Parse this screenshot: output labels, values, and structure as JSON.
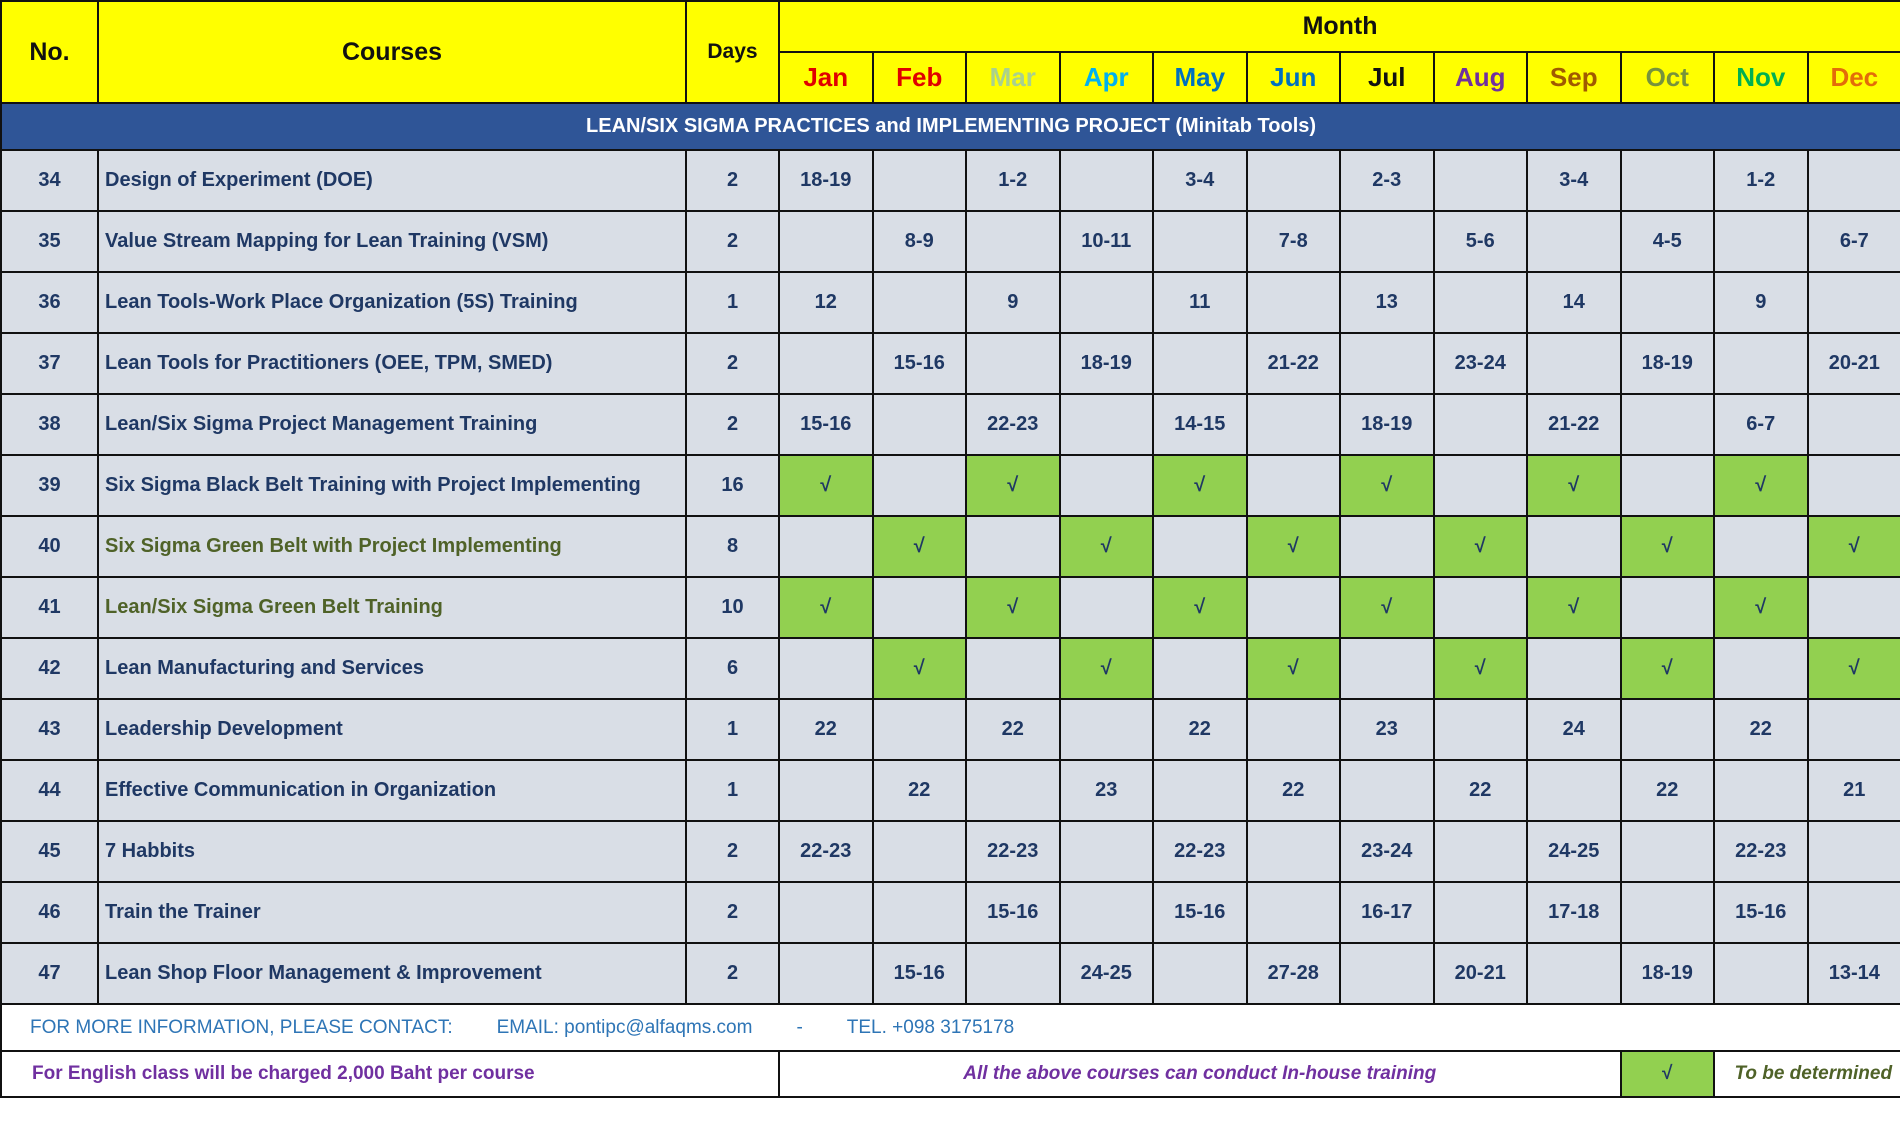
{
  "header": {
    "no": "No.",
    "courses": "Courses",
    "days": "Days",
    "month": "Month",
    "months": [
      {
        "name": "Jan",
        "color": "#e00000"
      },
      {
        "name": "Feb",
        "color": "#e00000"
      },
      {
        "name": "Mar",
        "color": "#a9d18e"
      },
      {
        "name": "Apr",
        "color": "#00b0f0"
      },
      {
        "name": "May",
        "color": "#0070c0"
      },
      {
        "name": "Jun",
        "color": "#0070c0"
      },
      {
        "name": "Jul",
        "color": "#111111"
      },
      {
        "name": "Aug",
        "color": "#7030a0"
      },
      {
        "name": "Sep",
        "color": "#a05a00"
      },
      {
        "name": "Oct",
        "color": "#77933c"
      },
      {
        "name": "Nov",
        "color": "#00b050"
      },
      {
        "name": "Dec",
        "color": "#e36c09"
      }
    ]
  },
  "section": "LEAN/SIX SIGMA PRACTICES and IMPLEMENTING PROJECT (Minitab Tools)",
  "rows": [
    {
      "no": 34,
      "course": "Design of Experiment (DOE)",
      "days": 2,
      "cells": [
        "18-19",
        null,
        "1-2",
        null,
        "3-4",
        null,
        "2-3",
        null,
        "3-4",
        null,
        "1-2",
        null
      ]
    },
    {
      "no": 35,
      "course": "Value Stream Mapping for Lean Training (VSM)",
      "days": 2,
      "cells": [
        null,
        "8-9",
        null,
        "10-11",
        null,
        "7-8",
        null,
        "5-6",
        null,
        "4-5",
        null,
        "6-7"
      ]
    },
    {
      "no": 36,
      "course": "Lean Tools-Work Place Organization (5S) Training",
      "days": 1,
      "cells": [
        "12",
        null,
        "9",
        null,
        "11",
        null,
        "13",
        null,
        "14",
        null,
        "9",
        null
      ]
    },
    {
      "no": 37,
      "course": "Lean Tools for Practitioners (OEE, TPM, SMED)",
      "days": 2,
      "cells": [
        null,
        "15-16",
        null,
        "18-19",
        null,
        "21-22",
        null,
        "23-24",
        null,
        "18-19",
        null,
        "20-21"
      ]
    },
    {
      "no": 38,
      "course": "Lean/Six Sigma Project Management Training",
      "days": 2,
      "cells": [
        "15-16",
        null,
        "22-23",
        null,
        "14-15",
        null,
        "18-19",
        null,
        "21-22",
        null,
        "6-7",
        null
      ]
    },
    {
      "no": 39,
      "course": "Six Sigma Black Belt Training with Project Implementing",
      "days": 16,
      "cells": [
        "√",
        null,
        "√",
        null,
        "√",
        null,
        "√",
        null,
        "√",
        null,
        "√",
        null
      ]
    },
    {
      "no": 40,
      "course": "Six Sigma Green Belt with Project Implementing",
      "days": 8,
      "cells": [
        null,
        "√",
        null,
        "√",
        null,
        "√",
        null,
        "√",
        null,
        "√",
        null,
        "√"
      ]
    },
    {
      "no": 41,
      "course": "Lean/Six Sigma Green Belt Training",
      "days": 10,
      "cells": [
        "√",
        null,
        "√",
        null,
        "√",
        null,
        "√",
        null,
        "√",
        null,
        "√",
        null
      ]
    },
    {
      "no": 42,
      "course": "Lean Manufacturing and Services",
      "days": 6,
      "cells": [
        null,
        "√",
        null,
        "√",
        null,
        "√",
        null,
        "√",
        null,
        "√",
        null,
        "√"
      ]
    },
    {
      "no": 43,
      "course": "Leadership Development",
      "days": 1,
      "cells": [
        "22",
        null,
        "22",
        null,
        "22",
        null,
        "23",
        null,
        "24",
        null,
        "22",
        null
      ]
    },
    {
      "no": 44,
      "course": "Effective Communication in Organization",
      "days": 1,
      "cells": [
        null,
        "22",
        null,
        "23",
        null,
        "22",
        null,
        "22",
        null,
        "22",
        null,
        "21"
      ]
    },
    {
      "no": 45,
      "course": "7 Habbits",
      "days": 2,
      "cells": [
        "22-23",
        null,
        "22-23",
        null,
        "22-23",
        null,
        "23-24",
        null,
        "24-25",
        null,
        "22-23",
        null
      ]
    },
    {
      "no": 46,
      "course": "Train the Trainer",
      "days": 2,
      "cells": [
        null,
        null,
        "15-16",
        null,
        "15-16",
        null,
        "16-17",
        null,
        "17-18",
        null,
        "15-16",
        null
      ]
    },
    {
      "no": 47,
      "course": "Lean Shop Floor Management & Improvement",
      "days": 2,
      "cells": [
        null,
        "15-16",
        null,
        "24-25",
        null,
        "27-28",
        null,
        "20-21",
        null,
        "18-19",
        null,
        "13-14"
      ]
    }
  ],
  "footer": {
    "contact": "FOR MORE INFORMATION, PLEASE CONTACT:",
    "email": "EMAIL: pontipc@alfaqms.com",
    "dash": "-",
    "tel": "TEL.  +098 3175178",
    "charge": "For English class will be charged 2,000 Baht per course",
    "inhouse": "All the above courses can conduct In-house training",
    "legend_symbol": "√",
    "legend_color": "#92d050",
    "legend_text": "To be determined"
  }
}
